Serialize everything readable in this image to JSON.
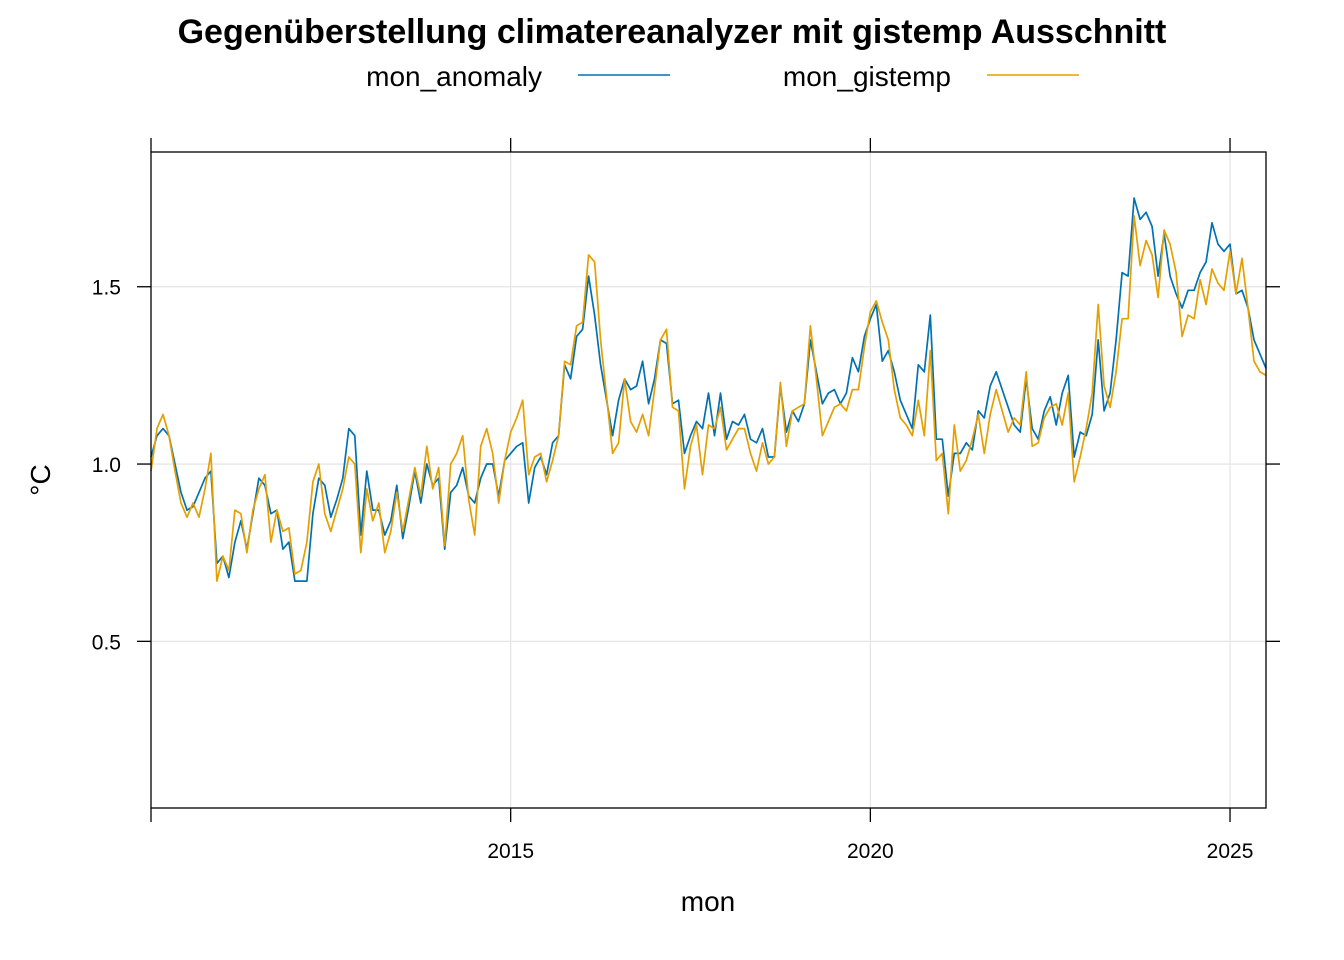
{
  "chart_data": {
    "type": "line",
    "title": "Gegenüberstellung climatereanalyzer mit gistemp Ausschnitt",
    "xlabel": "mon",
    "ylabel": "°C",
    "x_start": "2010-01",
    "x_step": "month",
    "xlim": [
      2010.0,
      2025.5
    ],
    "ylim": [
      0.03,
      1.88
    ],
    "x_ticks": [
      2015,
      2020,
      2025
    ],
    "y_ticks": [
      0.5,
      1.0,
      1.5
    ],
    "grid": true,
    "legend_position": "top",
    "series": [
      {
        "name": "mon_anomaly",
        "color": "#0072B2",
        "values": [
          1.02,
          1.08,
          1.1,
          1.08,
          1.0,
          0.92,
          0.87,
          0.88,
          0.92,
          0.96,
          0.98,
          0.72,
          0.74,
          0.68,
          0.78,
          0.84,
          0.76,
          0.86,
          0.96,
          0.94,
          0.86,
          0.87,
          0.76,
          0.78,
          0.67,
          0.67,
          0.67,
          0.86,
          0.96,
          0.94,
          0.85,
          0.9,
          0.96,
          1.1,
          1.08,
          0.8,
          0.98,
          0.87,
          0.87,
          0.8,
          0.84,
          0.94,
          0.79,
          0.88,
          0.98,
          0.89,
          1.0,
          0.94,
          0.96,
          0.76,
          0.92,
          0.94,
          0.99,
          0.91,
          0.89,
          0.96,
          1.0,
          1.0,
          0.91,
          1.01,
          1.03,
          1.05,
          1.06,
          0.89,
          0.99,
          1.02,
          0.97,
          1.06,
          1.08,
          1.28,
          1.24,
          1.36,
          1.38,
          1.53,
          1.42,
          1.28,
          1.18,
          1.08,
          1.18,
          1.24,
          1.21,
          1.22,
          1.29,
          1.17,
          1.24,
          1.35,
          1.34,
          1.17,
          1.18,
          1.03,
          1.08,
          1.12,
          1.1,
          1.2,
          1.08,
          1.2,
          1.07,
          1.12,
          1.11,
          1.14,
          1.07,
          1.06,
          1.1,
          1.02,
          1.02,
          1.22,
          1.09,
          1.15,
          1.12,
          1.17,
          1.35,
          1.26,
          1.17,
          1.2,
          1.21,
          1.17,
          1.2,
          1.3,
          1.26,
          1.36,
          1.41,
          1.45,
          1.29,
          1.32,
          1.26,
          1.18,
          1.14,
          1.1,
          1.28,
          1.26,
          1.42,
          1.07,
          1.07,
          0.91,
          1.03,
          1.03,
          1.06,
          1.04,
          1.15,
          1.13,
          1.22,
          1.26,
          1.21,
          1.16,
          1.11,
          1.09,
          1.24,
          1.1,
          1.07,
          1.15,
          1.19,
          1.11,
          1.2,
          1.25,
          1.02,
          1.09,
          1.08,
          1.14,
          1.35,
          1.15,
          1.2,
          1.35,
          1.54,
          1.53,
          1.75,
          1.69,
          1.71,
          1.67,
          1.53,
          1.65,
          1.53,
          1.48,
          1.44,
          1.49,
          1.49,
          1.54,
          1.57,
          1.68,
          1.62,
          1.6,
          1.62,
          1.48,
          1.49,
          1.44,
          1.35,
          1.31,
          1.27
        ]
      },
      {
        "name": "mon_gistemp",
        "color": "#E69F00",
        "values": [
          0.98,
          1.1,
          1.14,
          1.08,
          0.98,
          0.89,
          0.85,
          0.89,
          0.85,
          0.93,
          1.03,
          0.67,
          0.74,
          0.7,
          0.87,
          0.86,
          0.75,
          0.87,
          0.93,
          0.97,
          0.78,
          0.87,
          0.81,
          0.82,
          0.69,
          0.7,
          0.78,
          0.95,
          1.0,
          0.86,
          0.81,
          0.87,
          0.93,
          1.02,
          1.0,
          0.75,
          0.93,
          0.84,
          0.89,
          0.75,
          0.81,
          0.92,
          0.81,
          0.9,
          0.99,
          0.91,
          1.05,
          0.93,
          0.99,
          0.77,
          1.0,
          1.03,
          1.08,
          0.9,
          0.8,
          1.05,
          1.1,
          1.03,
          0.89,
          1.01,
          1.09,
          1.13,
          1.18,
          0.97,
          1.02,
          1.03,
          0.95,
          1.01,
          1.08,
          1.29,
          1.28,
          1.39,
          1.4,
          1.59,
          1.57,
          1.35,
          1.19,
          1.03,
          1.06,
          1.24,
          1.12,
          1.09,
          1.14,
          1.08,
          1.21,
          1.35,
          1.38,
          1.16,
          1.15,
          0.93,
          1.05,
          1.11,
          0.97,
          1.11,
          1.1,
          1.16,
          1.04,
          1.07,
          1.1,
          1.1,
          1.03,
          0.98,
          1.06,
          1.0,
          1.02,
          1.23,
          1.05,
          1.15,
          1.16,
          1.17,
          1.39,
          1.24,
          1.08,
          1.12,
          1.16,
          1.17,
          1.15,
          1.21,
          1.21,
          1.33,
          1.43,
          1.46,
          1.4,
          1.35,
          1.21,
          1.13,
          1.11,
          1.08,
          1.18,
          1.08,
          1.32,
          1.01,
          1.03,
          0.86,
          1.11,
          0.98,
          1.01,
          1.07,
          1.14,
          1.03,
          1.14,
          1.21,
          1.15,
          1.09,
          1.13,
          1.11,
          1.26,
          1.05,
          1.06,
          1.13,
          1.16,
          1.17,
          1.11,
          1.2,
          0.95,
          1.02,
          1.1,
          1.2,
          1.45,
          1.22,
          1.16,
          1.26,
          1.41,
          1.41,
          1.7,
          1.56,
          1.63,
          1.59,
          1.47,
          1.66,
          1.62,
          1.54,
          1.36,
          1.42,
          1.41,
          1.52,
          1.45,
          1.55,
          1.51,
          1.49,
          1.6,
          1.48,
          1.58,
          1.44,
          1.29,
          1.26,
          1.25
        ]
      }
    ]
  }
}
